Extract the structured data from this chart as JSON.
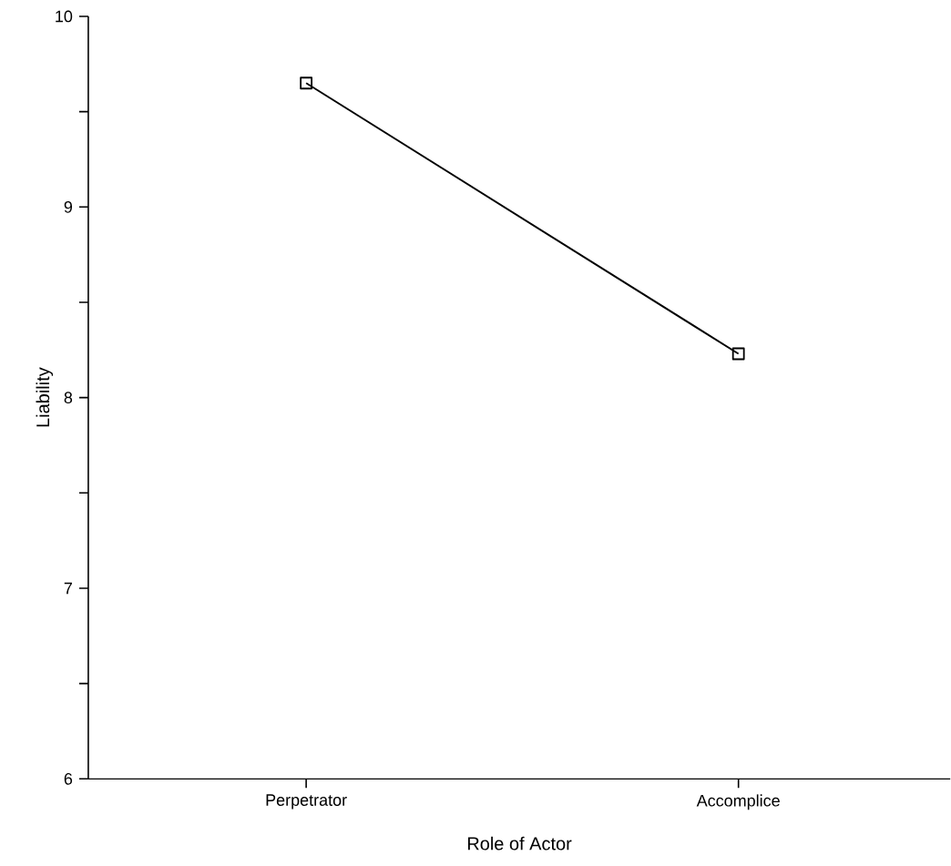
{
  "chart_data": {
    "type": "line",
    "xlabel": "Role of Actor",
    "ylabel": "Liability",
    "categories": [
      "Perpetrator",
      "Accomplice"
    ],
    "series": [
      {
        "color": "#000000",
        "values": [
          9.65,
          8.23
        ]
      }
    ],
    "ylim": [
      6,
      10
    ],
    "yticks": [
      6,
      {
        "value": 6.5,
        "label": null
      },
      7,
      {
        "value": 7.5,
        "label": null
      },
      8,
      {
        "value": 8.5,
        "label": null
      },
      9,
      {
        "value": 9.5,
        "label": null
      },
      10
    ],
    "grid": false,
    "marker": "square",
    "line_style": "solid"
  }
}
